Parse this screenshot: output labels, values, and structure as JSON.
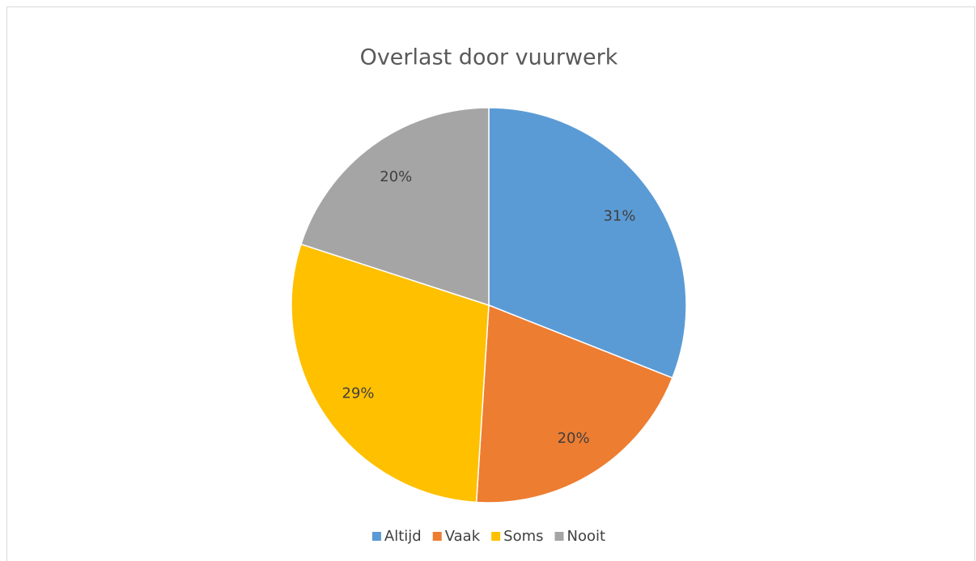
{
  "chart_data": {
    "type": "pie",
    "title": "Overlast door vuurwerk",
    "categories": [
      "Altijd",
      "Vaak",
      "Soms",
      "Nooit"
    ],
    "values": [
      31,
      20,
      29,
      20
    ],
    "value_labels": [
      "31%",
      "20%",
      "29%",
      "20%"
    ],
    "colors": [
      "#5b9bd5",
      "#ed7d31",
      "#ffc000",
      "#a5a5a5"
    ],
    "legend": "bottom"
  }
}
